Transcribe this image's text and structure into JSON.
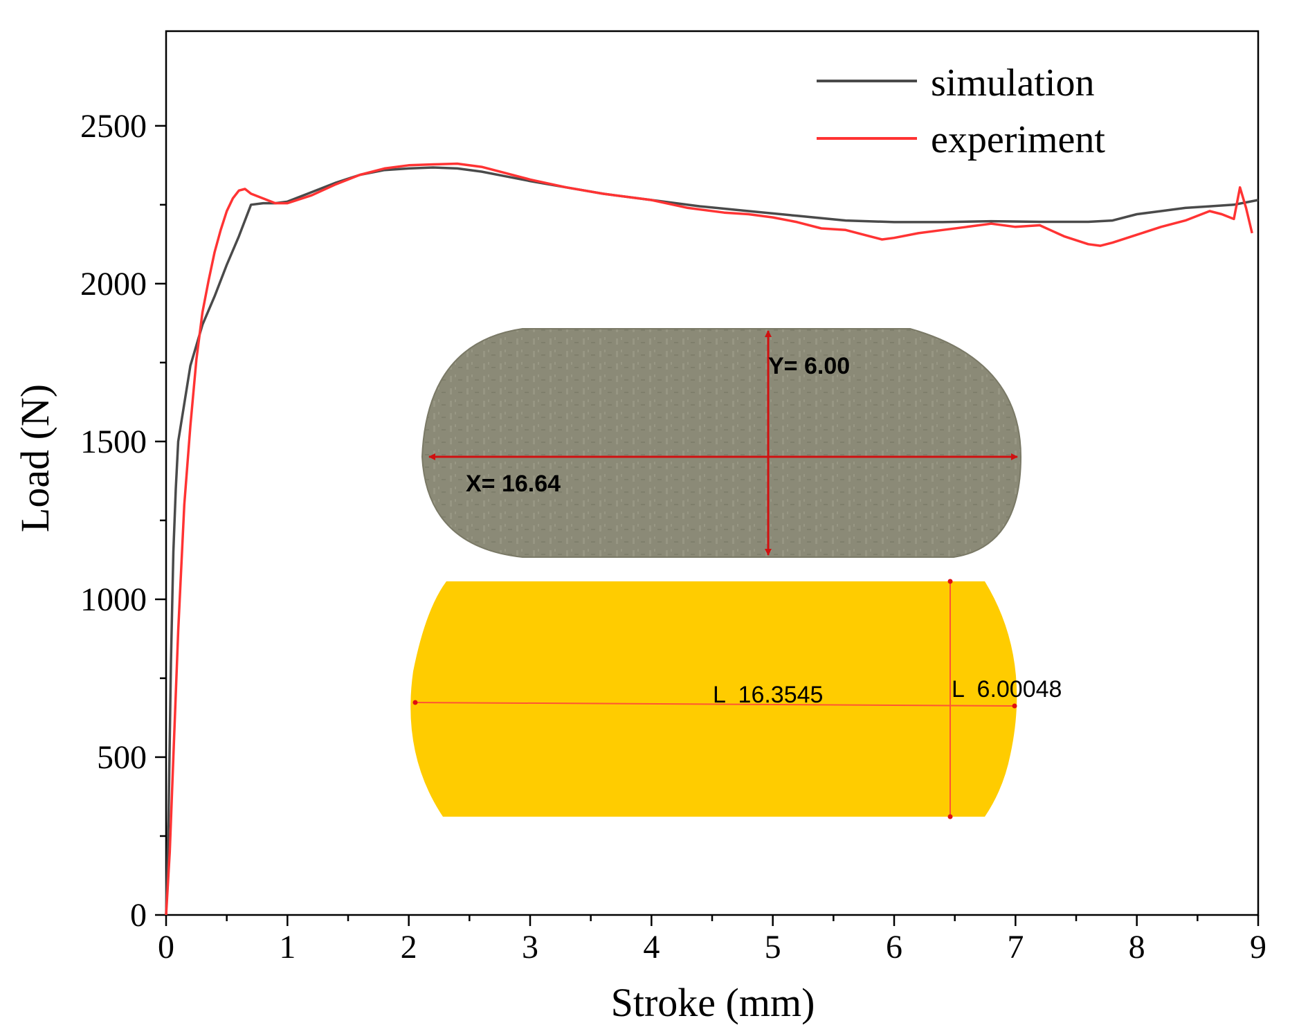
{
  "chart_data": {
    "type": "line",
    "title": "",
    "xlabel": "Stroke (mm)",
    "ylabel": "Load (N)",
    "xlim": [
      0,
      9
    ],
    "ylim": [
      0,
      2800
    ],
    "xticks": [
      0,
      1,
      2,
      3,
      4,
      5,
      6,
      7,
      8,
      9
    ],
    "yticks": [
      0,
      500,
      1000,
      1500,
      2000,
      2500
    ],
    "x_minor_step": 0.5,
    "y_minor_step": 250,
    "grid": false,
    "legend_position": "top-right",
    "series": [
      {
        "name": "simulation",
        "color": "#4a4a4a",
        "x": [
          0,
          0.02,
          0.04,
          0.06,
          0.08,
          0.1,
          0.15,
          0.2,
          0.3,
          0.4,
          0.5,
          0.6,
          0.7,
          0.8,
          0.9,
          1.0,
          1.2,
          1.4,
          1.6,
          1.8,
          2.0,
          2.2,
          2.4,
          2.6,
          2.8,
          3.0,
          3.3,
          3.6,
          4.0,
          4.4,
          4.8,
          5.2,
          5.6,
          6.0,
          6.4,
          6.8,
          7.2,
          7.6,
          7.8,
          8.0,
          8.2,
          8.4,
          8.6,
          8.8,
          9.0
        ],
        "y": [
          0,
          300,
          800,
          1150,
          1350,
          1500,
          1620,
          1740,
          1870,
          1960,
          2060,
          2150,
          2250,
          2255,
          2255,
          2260,
          2290,
          2320,
          2345,
          2360,
          2365,
          2368,
          2365,
          2355,
          2340,
          2325,
          2305,
          2285,
          2265,
          2245,
          2230,
          2215,
          2200,
          2195,
          2195,
          2198,
          2196,
          2196,
          2200,
          2220,
          2230,
          2240,
          2245,
          2250,
          2265
        ]
      },
      {
        "name": "experiment",
        "color": "#ff3333",
        "x": [
          0,
          0.03,
          0.06,
          0.1,
          0.15,
          0.2,
          0.25,
          0.3,
          0.35,
          0.4,
          0.45,
          0.5,
          0.55,
          0.6,
          0.65,
          0.7,
          0.8,
          0.9,
          1.0,
          1.2,
          1.4,
          1.6,
          1.8,
          2.0,
          2.2,
          2.4,
          2.6,
          2.8,
          3.0,
          3.3,
          3.6,
          4.0,
          4.3,
          4.6,
          4.8,
          5.0,
          5.2,
          5.4,
          5.6,
          5.8,
          5.9,
          6.0,
          6.2,
          6.4,
          6.6,
          6.8,
          7.0,
          7.2,
          7.4,
          7.6,
          7.7,
          7.8,
          8.0,
          8.2,
          8.4,
          8.6,
          8.7,
          8.8,
          8.85,
          8.9,
          8.95
        ],
        "y": [
          0,
          200,
          500,
          900,
          1300,
          1550,
          1760,
          1910,
          2010,
          2100,
          2170,
          2230,
          2270,
          2295,
          2300,
          2285,
          2270,
          2255,
          2255,
          2280,
          2315,
          2345,
          2365,
          2375,
          2378,
          2380,
          2370,
          2350,
          2330,
          2305,
          2285,
          2265,
          2240,
          2225,
          2220,
          2210,
          2195,
          2175,
          2170,
          2150,
          2140,
          2145,
          2160,
          2170,
          2180,
          2190,
          2180,
          2185,
          2150,
          2125,
          2120,
          2130,
          2155,
          2180,
          2200,
          2230,
          2220,
          2205,
          2305,
          2240,
          2160
        ]
      }
    ],
    "annotations": {
      "photo_x_label": "X= 16.64",
      "photo_y_label": "Y= 6.00",
      "sim_l_label": "L  16.3545",
      "sim_w_label": "L  6.00048"
    }
  },
  "colors": {
    "axis": "#000000",
    "photo_fill": "#8d8b78",
    "photo_dim": "#d01010",
    "sim_fill": "#ffcc00",
    "sim_dim": "#ff3333"
  }
}
